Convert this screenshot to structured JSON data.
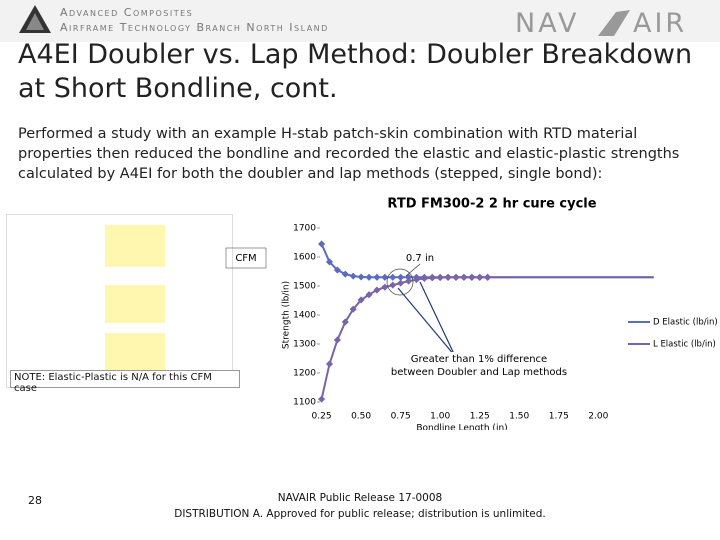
{
  "header": {
    "org": "Advanced Composites",
    "branch": "Airframe Technology Branch North Island",
    "logo_left": "NAV",
    "logo_right": "AIR"
  },
  "title": "A4EI Doubler vs. Lap Method: Doubler Breakdown at Short Bondline, cont.",
  "body": "Performed a study with an example H-stab patch-skin combination with RTD material properties then reduced the bondline and recorded the elastic and elastic-plastic strengths calculated by A4EI for both the doubler and lap methods (stepped, single bond):",
  "note": "NOTE: Elastic-Plastic is N/A for this CFM case",
  "chart_data": {
    "type": "line",
    "title": "RTD FM300-2 2 hr cure cycle",
    "x_label": "Bondline Length (in)",
    "y_label": "Strength (lb/in)",
    "x": [
      0.25,
      0.3,
      0.35,
      0.4,
      0.45,
      0.5,
      0.55,
      0.6,
      0.65,
      0.7,
      0.75,
      0.8,
      0.85,
      0.9,
      0.95,
      1.0,
      1.05,
      1.1,
      1.15,
      1.2,
      1.25,
      1.3,
      1.5,
      1.75,
      2.0,
      2.25,
      2.35
    ],
    "series": [
      {
        "name": "D Elastic (lb/in)",
        "color": "#5b6cc0",
        "values": [
          1645,
          1583,
          1555,
          1541,
          1534,
          1531,
          1530,
          1530,
          1530,
          1530,
          1530,
          1530,
          1530,
          1530,
          1530,
          1530,
          1530,
          1530,
          1530,
          1530,
          1530,
          1530,
          1530,
          1530,
          1530,
          1530,
          1530
        ]
      },
      {
        "name": "L Elastic (lb/in)",
        "color": "#7a63a8",
        "values": [
          1110,
          1231,
          1314,
          1376,
          1420,
          1452,
          1470,
          1486,
          1496,
          1503,
          1510,
          1517,
          1522,
          1526,
          1528,
          1529,
          1530,
          1530,
          1530,
          1530,
          1530,
          1530,
          1530,
          1530,
          1530,
          1530,
          1530
        ]
      }
    ],
    "xlim": [
      0.24,
      2.39
    ],
    "ylim": [
      1100,
      1700
    ],
    "xticks": [
      0.25,
      {
        "value": 0.5,
        "label": "0.50"
      },
      0.75,
      {
        "value": 1,
        "label": "1.00"
      },
      1.25,
      {
        "value": 1.5,
        "label": "1.50"
      },
      1.75,
      {
        "value": 2,
        "label": "2.00"
      }
    ],
    "yticks": [
      1100,
      1200,
      1300,
      1400,
      1500,
      1600,
      1700
    ],
    "grid": false,
    "legend": "right",
    "annotations": [
      "CFM",
      "0.7 in",
      "Greater than 1% difference between Doubler and Lap methods"
    ]
  },
  "footer": {
    "release": "NAVAIR Public Release 17-0008",
    "distribution": "DISTRIBUTION A. Approved for public release; distribution is unlimited.",
    "page": "28"
  }
}
